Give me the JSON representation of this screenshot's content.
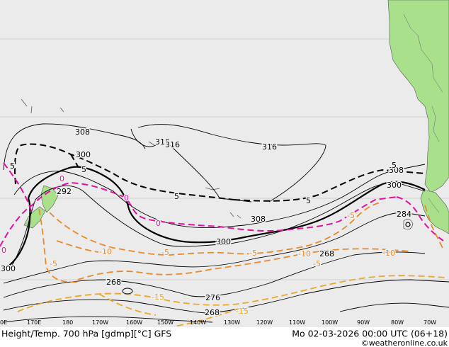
{
  "footer": {
    "left": "Height/Temp. 700 hPa [gdmp][°C] GFS",
    "right": "Mo 02-03-2026 00:00 UTC (06+18)",
    "credit": "©weatheronline.co.uk"
  },
  "colors": {
    "ocean": "#ebebeb",
    "land": "#a8e08c",
    "height_contour": "#000000",
    "temp_zero": "#e0119f",
    "temp_negative": "#e88a2c",
    "temp_cold": "#e8a82c",
    "temp_positive_dashed": "#000000"
  },
  "longitude_labels": [
    "0E",
    "170E",
    "180",
    "170W",
    "160W",
    "150W",
    "140W",
    "130W",
    "120W",
    "110W",
    "100W",
    "90W",
    "80W",
    "70W"
  ],
  "height_labels": [
    "308",
    "316",
    "316",
    "316",
    "300",
    "292",
    "308",
    "300",
    "308",
    "300",
    "284",
    "268",
    "268",
    "276",
    "268",
    "300"
  ],
  "temp_labels": [
    "5",
    "5",
    "5",
    "5",
    "5",
    "0",
    "0",
    "0",
    "0",
    "-5",
    "-5",
    "-5",
    "-5",
    "-10",
    "-10",
    "-10",
    "-15",
    "-15",
    "-5"
  ]
}
